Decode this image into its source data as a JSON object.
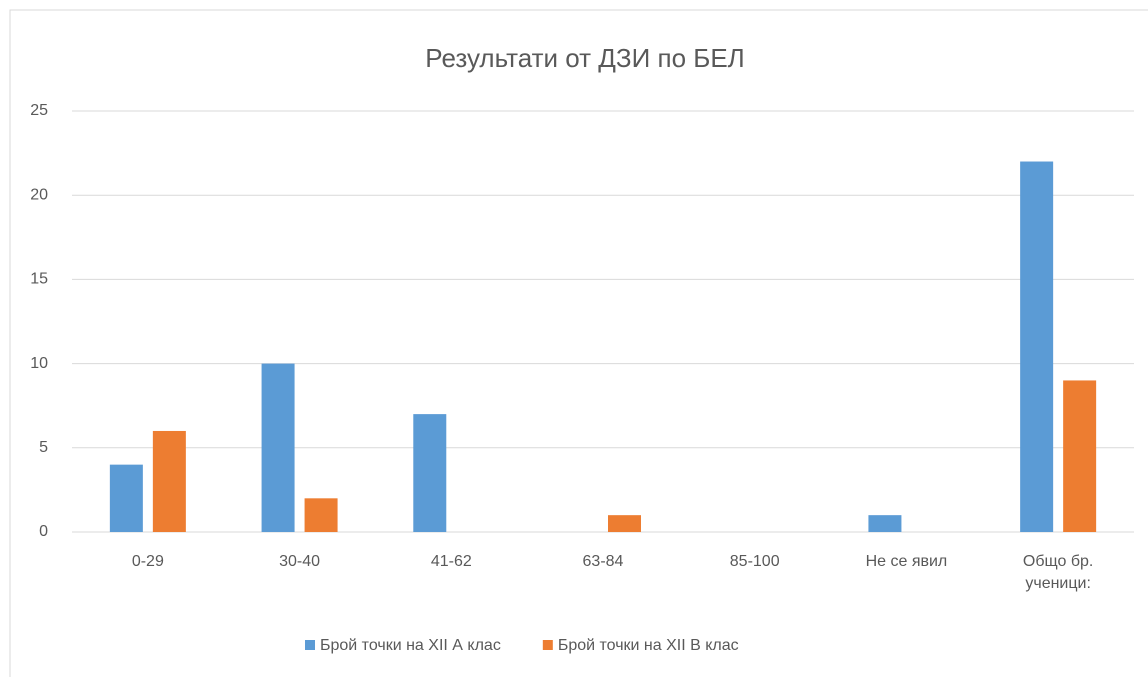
{
  "chart_data": {
    "type": "bar",
    "title": "Результати от ДЗИ по БЕЛ",
    "categories": [
      "0-29",
      "30-40",
      "41-62",
      "63-84",
      "85-100",
      "Не се явил",
      "Общо бр. ученици:"
    ],
    "series": [
      {
        "name": "Брой точки на XII А клас",
        "color": "#5b9bd5",
        "values": [
          4,
          10,
          7,
          0,
          0,
          1,
          22
        ]
      },
      {
        "name": "Брой точки на XII В клас",
        "color": "#ed7d31",
        "values": [
          6,
          2,
          0,
          1,
          0,
          0,
          9
        ]
      }
    ],
    "ylim": [
      0,
      25
    ],
    "yticks": [
      0,
      5,
      10,
      15,
      20,
      25
    ],
    "grid": true,
    "legend": "bottom"
  }
}
